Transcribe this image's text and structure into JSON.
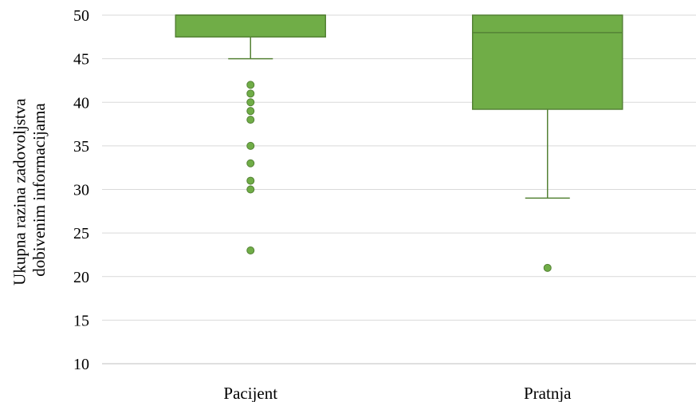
{
  "chart_data": {
    "type": "box",
    "ylabel_lines": [
      "Ukupna razina zadovoljstva",
      "dobivenim informacijama"
    ],
    "ylim": [
      10,
      50
    ],
    "yticks": [
      10,
      15,
      20,
      25,
      30,
      35,
      40,
      45,
      50
    ],
    "grid": true,
    "categories": [
      "Pacijent",
      "Pratnja"
    ],
    "boxes": [
      {
        "category": "Pacijent",
        "q1": 47.5,
        "median": 50,
        "q3": 50,
        "whisker_low": 45,
        "whisker_high": 50,
        "outliers": [
          42,
          41,
          40,
          39,
          38,
          35,
          33,
          31,
          30,
          23
        ]
      },
      {
        "category": "Pratnja",
        "q1": 39.2,
        "median": 48,
        "q3": 50,
        "whisker_low": 29,
        "whisker_high": 50,
        "outliers": [
          21
        ]
      }
    ],
    "colors": {
      "box_fill": "#70ad47",
      "box_stroke": "#548235",
      "grid": "#d9d9d9",
      "axis": "#bfbfbf"
    }
  }
}
